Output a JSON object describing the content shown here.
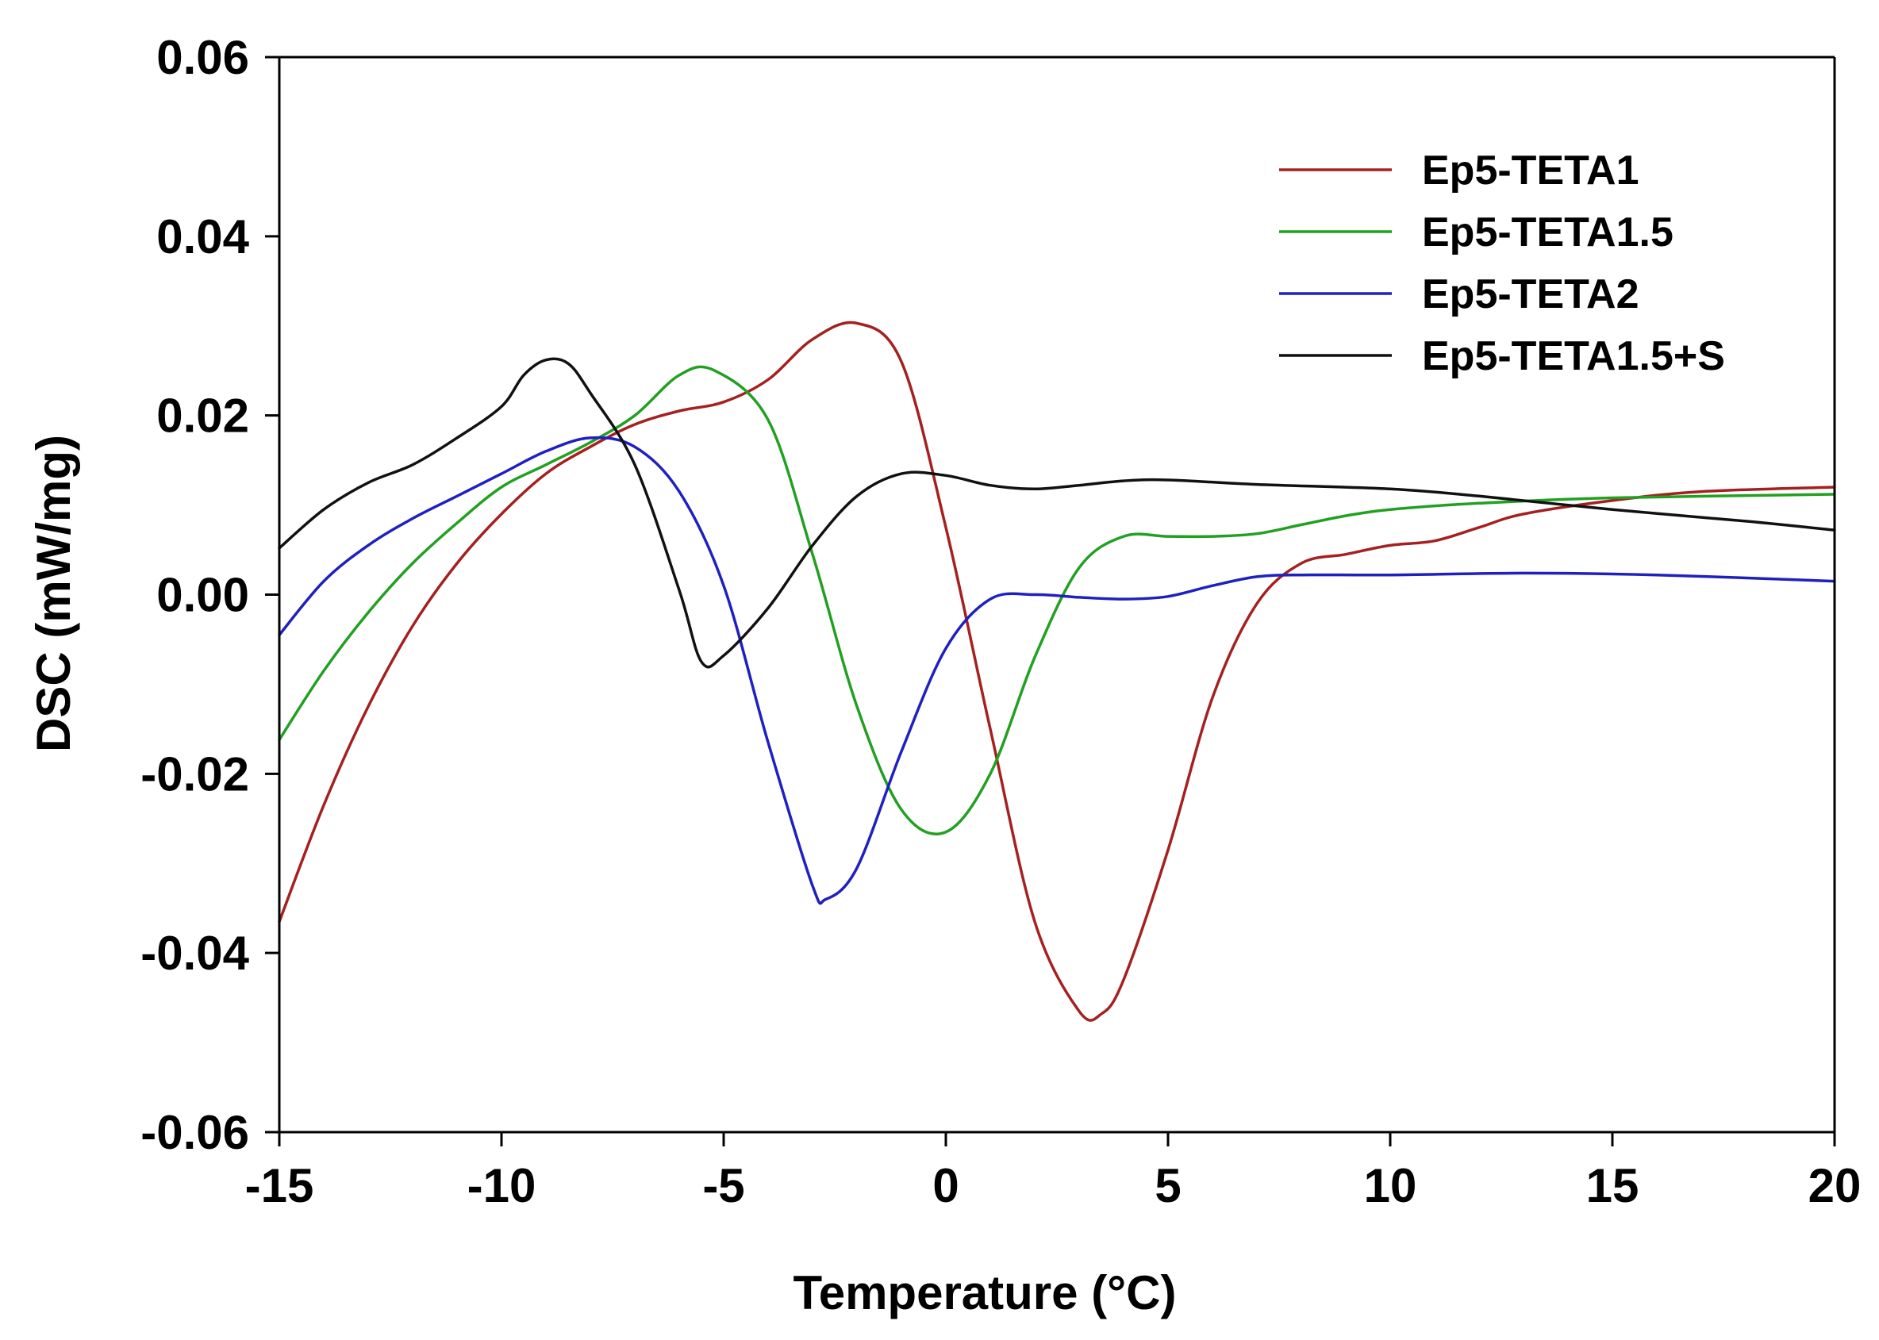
{
  "chart_data": {
    "type": "line",
    "title": "",
    "xlabel": "Temperature (°C)",
    "ylabel": "DSC (mW/mg)",
    "xlim": [
      -15,
      20
    ],
    "ylim": [
      -0.06,
      0.06
    ],
    "x_ticks": [
      -15,
      -10,
      -5,
      0,
      5,
      10,
      15,
      20
    ],
    "x_tick_labels": [
      "-15",
      "-10",
      "-5",
      "0",
      "5",
      "10",
      "15",
      "20"
    ],
    "y_ticks": [
      -0.06,
      -0.04,
      -0.02,
      0.0,
      0.02,
      0.04,
      0.06
    ],
    "y_tick_labels": [
      "-0.06",
      "-0.04",
      "-0.02",
      "0.00",
      "0.02",
      "0.04",
      "0.06"
    ],
    "grid": false,
    "legend_position": "top-right",
    "series": [
      {
        "name": "Ep5-TETA1",
        "color": "#a52020",
        "points": [
          [
            -15,
            -0.0365
          ],
          [
            -14,
            -0.0235
          ],
          [
            -13,
            -0.0125
          ],
          [
            -12,
            -0.0035
          ],
          [
            -11,
            0.0035
          ],
          [
            -10,
            0.009
          ],
          [
            -9,
            0.0135
          ],
          [
            -8,
            0.0165
          ],
          [
            -7,
            0.019
          ],
          [
            -6,
            0.0205
          ],
          [
            -5,
            0.0215
          ],
          [
            -4,
            0.024
          ],
          [
            -3,
            0.0285
          ],
          [
            -2,
            0.0303
          ],
          [
            -1,
            0.026
          ],
          [
            0,
            0.0075
          ],
          [
            1,
            -0.015
          ],
          [
            2,
            -0.0365
          ],
          [
            3,
            -0.0465
          ],
          [
            3.5,
            -0.0468
          ],
          [
            4,
            -0.043
          ],
          [
            5,
            -0.0285
          ],
          [
            6,
            -0.0115
          ],
          [
            7,
            -0.001
          ],
          [
            8,
            0.0035
          ],
          [
            9,
            0.0045
          ],
          [
            10,
            0.0055
          ],
          [
            11,
            0.006
          ],
          [
            12,
            0.0075
          ],
          [
            13,
            0.009
          ],
          [
            15,
            0.0105
          ],
          [
            17,
            0.0115
          ],
          [
            20,
            0.012
          ]
        ]
      },
      {
        "name": "Ep5-TETA1.5",
        "color": "#22a022",
        "points": [
          [
            -15,
            -0.0162
          ],
          [
            -14,
            -0.0085
          ],
          [
            -13,
            -0.002
          ],
          [
            -12,
            0.0035
          ],
          [
            -11,
            0.008
          ],
          [
            -10,
            0.012
          ],
          [
            -9,
            0.0145
          ],
          [
            -8,
            0.017
          ],
          [
            -7,
            0.02
          ],
          [
            -6,
            0.0245
          ],
          [
            -5.2,
            0.025
          ],
          [
            -4,
            0.0195
          ],
          [
            -3,
            0.0045
          ],
          [
            -2,
            -0.0125
          ],
          [
            -1,
            -0.024
          ],
          [
            0,
            -0.0265
          ],
          [
            1,
            -0.02
          ],
          [
            2,
            -0.007
          ],
          [
            3,
            0.003
          ],
          [
            4,
            0.0065
          ],
          [
            5,
            0.0065
          ],
          [
            6,
            0.0065
          ],
          [
            7,
            0.0068
          ],
          [
            8,
            0.0078
          ],
          [
            9,
            0.0088
          ],
          [
            10,
            0.0095
          ],
          [
            12,
            0.0102
          ],
          [
            15,
            0.0108
          ],
          [
            20,
            0.0112
          ]
        ]
      },
      {
        "name": "Ep5-TETA2",
        "color": "#2020c0",
        "points": [
          [
            -15,
            -0.0045
          ],
          [
            -14,
            0.0015
          ],
          [
            -13,
            0.0055
          ],
          [
            -12,
            0.0085
          ],
          [
            -11,
            0.011
          ],
          [
            -10,
            0.0135
          ],
          [
            -9,
            0.016
          ],
          [
            -8,
            0.0175
          ],
          [
            -7,
            0.0165
          ],
          [
            -6,
            0.0115
          ],
          [
            -5,
            0.001
          ],
          [
            -4,
            -0.0165
          ],
          [
            -3,
            -0.0325
          ],
          [
            -2.7,
            -0.034
          ],
          [
            -2,
            -0.0305
          ],
          [
            -1,
            -0.0175
          ],
          [
            0,
            -0.006
          ],
          [
            1,
            -0.0005
          ],
          [
            2,
            0.0
          ],
          [
            3,
            -0.0003
          ],
          [
            4,
            -0.0005
          ],
          [
            5,
            -0.0002
          ],
          [
            6,
            0.001
          ],
          [
            7,
            0.002
          ],
          [
            8,
            0.0022
          ],
          [
            10,
            0.0022
          ],
          [
            13,
            0.0024
          ],
          [
            16,
            0.0022
          ],
          [
            20,
            0.0015
          ]
        ]
      },
      {
        "name": "Ep5-TETA1.5+S",
        "color": "#111111",
        "points": [
          [
            -15,
            0.0052
          ],
          [
            -14,
            0.0095
          ],
          [
            -13,
            0.0125
          ],
          [
            -12,
            0.0145
          ],
          [
            -11,
            0.0175
          ],
          [
            -10,
            0.021
          ],
          [
            -9.5,
            0.0245
          ],
          [
            -9,
            0.0262
          ],
          [
            -8.5,
            0.0258
          ],
          [
            -8,
            0.0225
          ],
          [
            -7,
            0.0145
          ],
          [
            -6,
            0.0005
          ],
          [
            -5.5,
            -0.0075
          ],
          [
            -5,
            -0.0068
          ],
          [
            -4,
            -0.0015
          ],
          [
            -3,
            0.0055
          ],
          [
            -2,
            0.011
          ],
          [
            -1,
            0.0135
          ],
          [
            0,
            0.0133
          ],
          [
            1,
            0.0122
          ],
          [
            2,
            0.0118
          ],
          [
            3,
            0.0122
          ],
          [
            4,
            0.0127
          ],
          [
            5,
            0.0128
          ],
          [
            7,
            0.0123
          ],
          [
            10,
            0.0118
          ],
          [
            12,
            0.011
          ],
          [
            15,
            0.0095
          ],
          [
            18,
            0.0082
          ],
          [
            20,
            0.0072
          ]
        ]
      }
    ]
  }
}
